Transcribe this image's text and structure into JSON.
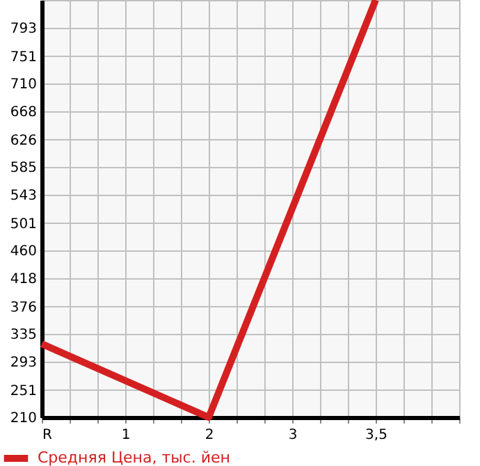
{
  "chart_data": {
    "type": "line",
    "categories": [
      "R",
      "1",
      "2",
      "3",
      "3,5",
      null
    ],
    "series": [
      {
        "name": "Средняя Цена, тыс. йен",
        "color": "#d42020",
        "values": [
          320,
          null,
          210,
          null,
          835,
          null
        ]
      }
    ],
    "ylim": [
      210,
      835
    ],
    "yticks": [
      210,
      251,
      293,
      335,
      376,
      418,
      460,
      501,
      543,
      585,
      626,
      668,
      710,
      751,
      793
    ],
    "grid": true,
    "legend": "bottom",
    "marker": "none",
    "line_style": "solid"
  }
}
